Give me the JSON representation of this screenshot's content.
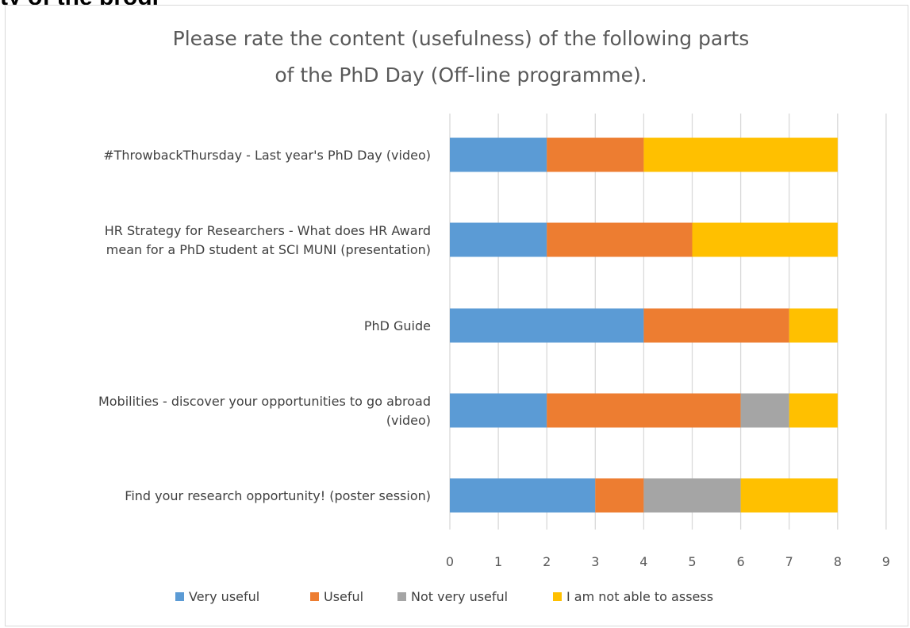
{
  "page": {
    "heading_fragment": "ty of the progr"
  },
  "chart_data": {
    "type": "bar",
    "orientation": "horizontal",
    "stacked": true,
    "title": "Please rate the content (usefulness) of the following parts of the PhD Day (Off-line programme).",
    "title_lines": [
      "Please rate the content (usefulness) of the following parts",
      "of the PhD Day (Off-line programme)."
    ],
    "categories": [
      "#ThrowbackThursday - Last year's PhD Day (video)",
      "HR Strategy for Researchers - What does HR Award mean for a PhD student at SCI MUNI (presentation)",
      "PhD Guide",
      "Mobilities - discover your opportunities to go abroad (video)",
      "Find your research opportunity! (poster session)"
    ],
    "category_label_lines": [
      [
        "#ThrowbackThursday - Last year's PhD Day (video)"
      ],
      [
        "HR Strategy for Researchers - What does HR Award",
        "mean for a PhD student at SCI MUNI (presentation)"
      ],
      [
        "PhD Guide"
      ],
      [
        "Mobilities - discover your opportunities to go abroad",
        "(video)"
      ],
      [
        "Find your research opportunity! (poster session)"
      ]
    ],
    "series": [
      {
        "name": "Very useful",
        "color": "#5b9bd5",
        "values": [
          2,
          2,
          4,
          2,
          3
        ]
      },
      {
        "name": "Useful",
        "color": "#ed7d31",
        "values": [
          2,
          3,
          3,
          4,
          1
        ]
      },
      {
        "name": "Not very useful",
        "color": "#a5a5a5",
        "values": [
          0,
          0,
          0,
          1,
          2
        ]
      },
      {
        "name": "I am not able to assess",
        "color": "#ffc000",
        "values": [
          4,
          3,
          1,
          1,
          2
        ]
      }
    ],
    "xlim": [
      0,
      9
    ],
    "x_ticks": [
      "0",
      "1",
      "2",
      "3",
      "4",
      "5",
      "6",
      "7",
      "8",
      "9"
    ],
    "grid": true,
    "legend_position": "bottom"
  }
}
